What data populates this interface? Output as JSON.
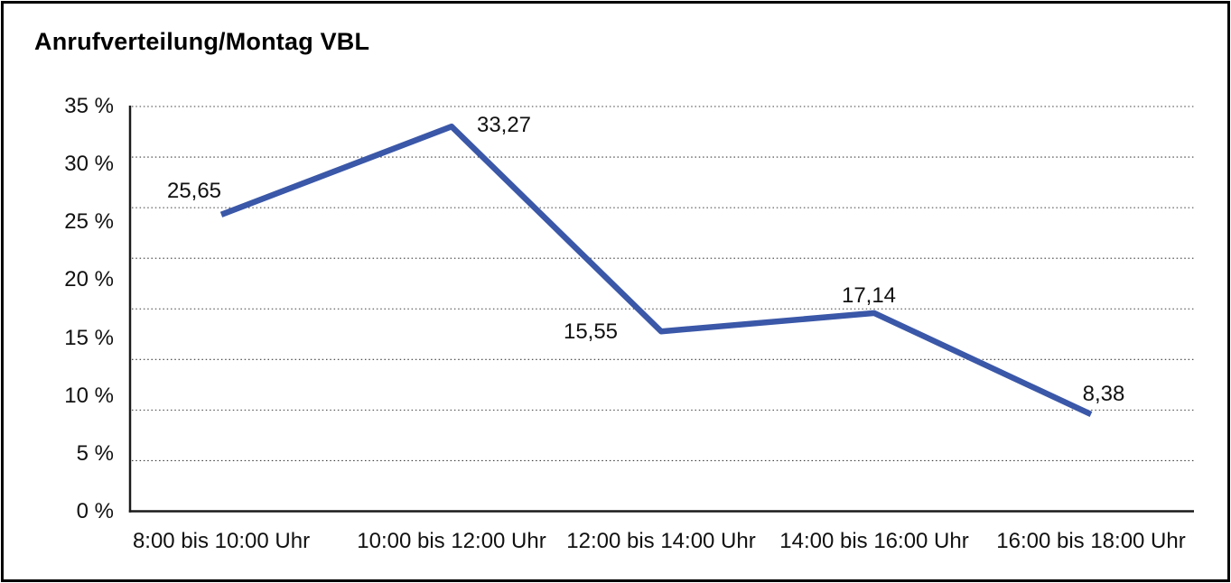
{
  "chart_data": {
    "type": "line",
    "title": "Anrufverteilung/Montag VBL",
    "categories": [
      "8:00 bis 10:00 Uhr",
      "10:00 bis 12:00 Uhr",
      "12:00 bis 14:00 Uhr",
      "14:00 bis 16:00 Uhr",
      "16:00 bis 18:00 Uhr"
    ],
    "values": [
      25.65,
      33.27,
      15.55,
      17.14,
      8.38
    ],
    "value_labels": [
      "25,65",
      "33,27",
      "15,55",
      "17,14",
      "8,38"
    ],
    "y_ticks": [
      "35 %",
      "30 %",
      "25 %",
      "20 %",
      "15 %",
      "10 %",
      "5 %",
      "0 %"
    ],
    "ylim": [
      0,
      35
    ],
    "xlabel": "",
    "ylabel": "",
    "legend_position": "none",
    "grid": "horizontal-dotted",
    "colors": {
      "line": "#3A57A8",
      "text": "#111111",
      "axis": "#1a1a1a",
      "gridline": "#3c3c3c",
      "background": "#ffffff",
      "figure_border": "#000000"
    }
  }
}
